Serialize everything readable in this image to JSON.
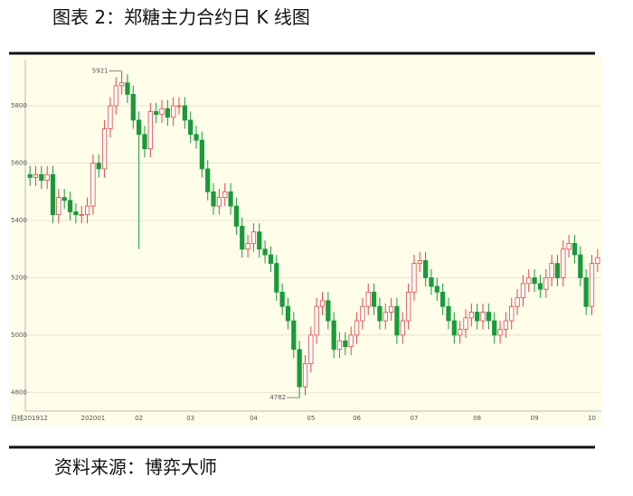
{
  "chart_data": {
    "type": "candlestick",
    "title": "图表 2：郑糖主力合约日 K 线图",
    "source": "资料来源：博弈大师",
    "period_label": "日线",
    "categories": [
      null,
      "201912",
      null,
      null,
      null,
      null,
      null,
      null,
      null,
      null,
      null,
      "202001",
      null,
      null,
      null,
      null,
      null,
      null,
      null,
      "02",
      null,
      null,
      null,
      null,
      null,
      null,
      null,
      null,
      "03",
      null,
      null,
      null,
      null,
      null,
      null,
      null,
      null,
      null,
      null,
      "04",
      null,
      null,
      null,
      null,
      null,
      null,
      null,
      null,
      null,
      "05",
      null,
      null,
      null,
      null,
      null,
      null,
      null,
      "06",
      null,
      null,
      null,
      null,
      null,
      null,
      null,
      null,
      null,
      "07",
      null,
      null,
      null,
      null,
      null,
      null,
      null,
      null,
      null,
      null,
      "08",
      null,
      null,
      null,
      null,
      null,
      null,
      null,
      null,
      null,
      "09",
      null,
      null,
      null,
      null,
      null,
      null,
      null,
      null,
      null,
      "10",
      null
    ],
    "open": [
      5560,
      5550,
      5560,
      5540,
      5560,
      5420,
      5480,
      5470,
      5430,
      5420,
      5420,
      5450,
      5600,
      5580,
      5720,
      5800,
      5870,
      5880,
      5840,
      5750,
      5700,
      5650,
      5780,
      5770,
      5790,
      5760,
      5800,
      5800,
      5750,
      5700,
      5680,
      5580,
      5500,
      5450,
      5480,
      5500,
      5450,
      5380,
      5300,
      5320,
      5360,
      5300,
      5280,
      5250,
      5150,
      5100,
      5050,
      4950,
      4820,
      4900,
      5000,
      5100,
      5120,
      5050,
      4950,
      4980,
      4960,
      5000,
      5050,
      5100,
      5150,
      5100,
      5050,
      5080,
      5100,
      5000,
      5050,
      5150,
      5250,
      5260,
      5200,
      5170,
      5150,
      5100,
      5050,
      5000,
      5020,
      5060,
      5080,
      5050,
      5080,
      5050,
      5000,
      5020,
      5050,
      5100,
      5130,
      5180,
      5200,
      5180,
      5160,
      5200,
      5250,
      5200,
      5300,
      5320,
      5280,
      5200,
      5100,
      5250
    ],
    "high": [
      5590,
      5590,
      5590,
      5590,
      5590,
      5510,
      5510,
      5500,
      5460,
      5450,
      5480,
      5630,
      5630,
      5750,
      5830,
      5900,
      5921,
      5910,
      5870,
      5780,
      5730,
      5810,
      5810,
      5820,
      5820,
      5830,
      5830,
      5830,
      5780,
      5730,
      5710,
      5610,
      5530,
      5510,
      5530,
      5530,
      5480,
      5410,
      5350,
      5390,
      5390,
      5330,
      5310,
      5280,
      5180,
      5130,
      5080,
      4980,
      4930,
      5030,
      5130,
      5150,
      5150,
      5080,
      5010,
      5010,
      5030,
      5080,
      5130,
      5180,
      5180,
      5130,
      5110,
      5130,
      5130,
      5080,
      5180,
      5280,
      5290,
      5290,
      5230,
      5200,
      5180,
      5130,
      5080,
      5050,
      5090,
      5110,
      5110,
      5110,
      5110,
      5080,
      5050,
      5080,
      5130,
      5160,
      5210,
      5230,
      5230,
      5210,
      5230,
      5280,
      5280,
      5330,
      5350,
      5350,
      5310,
      5230,
      5280,
      5300
    ],
    "low": [
      5520,
      5520,
      5510,
      5510,
      5390,
      5390,
      5440,
      5400,
      5390,
      5390,
      5390,
      5420,
      5550,
      5550,
      5690,
      5770,
      5840,
      5810,
      5720,
      5300,
      5620,
      5620,
      5740,
      5740,
      5730,
      5730,
      5770,
      5720,
      5670,
      5650,
      5550,
      5470,
      5420,
      5420,
      5450,
      5420,
      5350,
      5270,
      5270,
      5290,
      5270,
      5250,
      5220,
      5120,
      5070,
      5020,
      4920,
      4782,
      4790,
      4870,
      4970,
      5070,
      5020,
      4920,
      4920,
      4930,
      4930,
      4970,
      5020,
      5070,
      5070,
      5020,
      5020,
      5050,
      4970,
      4970,
      5020,
      5120,
      5220,
      5170,
      5140,
      5120,
      5070,
      5020,
      4970,
      4970,
      4990,
      5030,
      5020,
      5020,
      5020,
      4970,
      4970,
      4990,
      5020,
      5070,
      5100,
      5150,
      5150,
      5130,
      5130,
      5170,
      5170,
      5170,
      5270,
      5250,
      5170,
      5070,
      5070,
      5220
    ],
    "close": [
      5550,
      5560,
      5540,
      5560,
      5420,
      5480,
      5470,
      5430,
      5420,
      5420,
      5450,
      5600,
      5580,
      5720,
      5800,
      5870,
      5880,
      5840,
      5750,
      5700,
      5650,
      5780,
      5770,
      5790,
      5760,
      5800,
      5800,
      5750,
      5700,
      5680,
      5580,
      5500,
      5450,
      5480,
      5500,
      5450,
      5380,
      5300,
      5320,
      5360,
      5300,
      5280,
      5250,
      5150,
      5100,
      5050,
      4950,
      4820,
      4900,
      5000,
      5100,
      5120,
      5050,
      4950,
      4980,
      4960,
      5000,
      5050,
      5100,
      5150,
      5100,
      5050,
      5080,
      5100,
      5000,
      5050,
      5150,
      5250,
      5260,
      5200,
      5170,
      5150,
      5100,
      5050,
      5000,
      5020,
      5060,
      5080,
      5050,
      5080,
      5050,
      5000,
      5020,
      5050,
      5100,
      5130,
      5180,
      5200,
      5180,
      5160,
      5200,
      5250,
      5200,
      5300,
      5320,
      5280,
      5200,
      5100,
      5250,
      5270
    ],
    "up_color": "#e0474c",
    "down_color": "#1a9a3a",
    "ylim": [
      4735,
      5961
    ],
    "yticks": [
      4800,
      5000,
      5200,
      5400,
      5600,
      5800
    ],
    "grid": true,
    "annotations": [
      {
        "label": "5921",
        "value": 5921
      },
      {
        "label": "4782",
        "value": 4782
      }
    ]
  }
}
